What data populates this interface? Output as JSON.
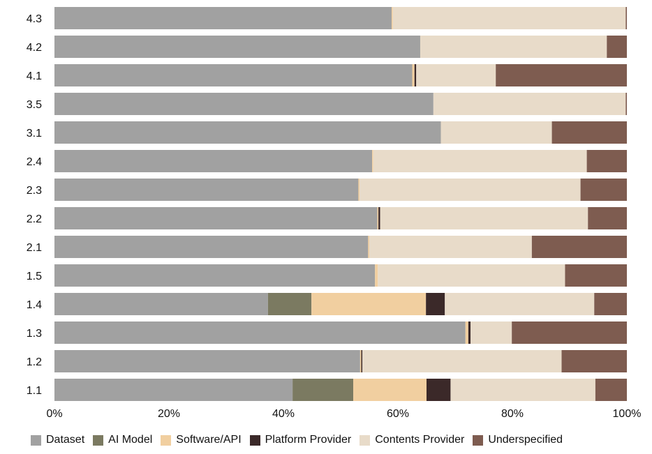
{
  "chart_data": {
    "type": "bar",
    "orientation": "horizontal",
    "stacked": true,
    "normalized": true,
    "title": "",
    "xlabel": "",
    "ylabel": "",
    "xlim": [
      0,
      100
    ],
    "x_ticks": [
      "0%",
      "20%",
      "40%",
      "60%",
      "80%",
      "100%"
    ],
    "categories": [
      "4.3",
      "4.2",
      "4.1",
      "3.5",
      "3.1",
      "2.4",
      "2.3",
      "2.2",
      "2.1",
      "1.5",
      "1.4",
      "1.3",
      "1.2",
      "1.1"
    ],
    "legend_position": "bottom",
    "series": [
      {
        "name": "Dataset",
        "color": "#a1a1a1",
        "values": [
          58.9,
          63.9,
          62.5,
          66.2,
          67.5,
          55.5,
          53.1,
          56.4,
          54.8,
          56.0,
          37.3,
          71.8,
          53.4,
          41.6
        ]
      },
      {
        "name": "AI Model",
        "color": "#7b7a61",
        "values": [
          0,
          0,
          0,
          0,
          0,
          0,
          0,
          0,
          0,
          0,
          7.6,
          0,
          0,
          10.6
        ]
      },
      {
        "name": "Software/API",
        "color": "#f1cfa0",
        "values": [
          0.2,
          0,
          0.4,
          0,
          0,
          0.2,
          0.2,
          0.2,
          0.2,
          0.5,
          20.0,
          0.5,
          0.2,
          12.8
        ]
      },
      {
        "name": "Platform Provider",
        "color": "#3b2929",
        "values": [
          0,
          0,
          0.3,
          0,
          0,
          0,
          0,
          0.3,
          0,
          0,
          3.3,
          0.4,
          0.2,
          4.2
        ]
      },
      {
        "name": "Contents Provider",
        "color": "#e8dbc9",
        "values": [
          40.7,
          32.6,
          13.9,
          33.6,
          19.4,
          37.3,
          38.6,
          36.3,
          28.4,
          32.7,
          26.1,
          7.2,
          34.8,
          25.3
        ]
      },
      {
        "name": "Underspecified",
        "color": "#7e5c50",
        "values": [
          0.2,
          3.5,
          22.9,
          0.2,
          13.1,
          7.0,
          8.1,
          6.8,
          16.6,
          10.8,
          5.7,
          20.1,
          11.4,
          5.5
        ]
      }
    ]
  }
}
